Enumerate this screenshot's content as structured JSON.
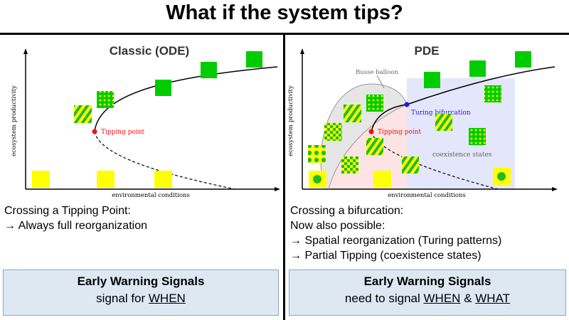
{
  "title": "What if the system tips?",
  "left": {
    "panel_title": "Classic (ODE)",
    "plot": {
      "ylabel": "ecosystem productivity",
      "xlabel": "environmental conditions",
      "annotation": "Tipping point"
    },
    "text_lines": [
      "Crossing a Tipping Point:",
      "→ Always full reorganization"
    ],
    "box": {
      "title": "Early Warning Signals",
      "prefix": "signal for ",
      "word": "WHEN"
    }
  },
  "right": {
    "panel_title": "PDE",
    "plot": {
      "ylabel": "ecosystem productivity",
      "xlabel": "environmental conditions",
      "busse_label": "Busse balloon",
      "turing_label": "Turing bifurcation",
      "tipping_label": "Tipping point",
      "coexist_label": "coexistence states"
    },
    "text_lines": [
      "Crossing a bifurcation:",
      "Now also possible:",
      "→ Spatial reorganization (Turing patterns)",
      "→ Partial Tipping (coexistence states)"
    ],
    "box": {
      "title": "Early Warning Signals",
      "prefix": "need to signal ",
      "word1": "WHEN",
      "amp": " & ",
      "word2": "WHAT"
    }
  },
  "colors": {
    "green": "#00cc00",
    "yellow": "#ffff00",
    "red": "#ee1111",
    "blue": "#1a1ae6",
    "box_bg": "#dde8f3"
  }
}
